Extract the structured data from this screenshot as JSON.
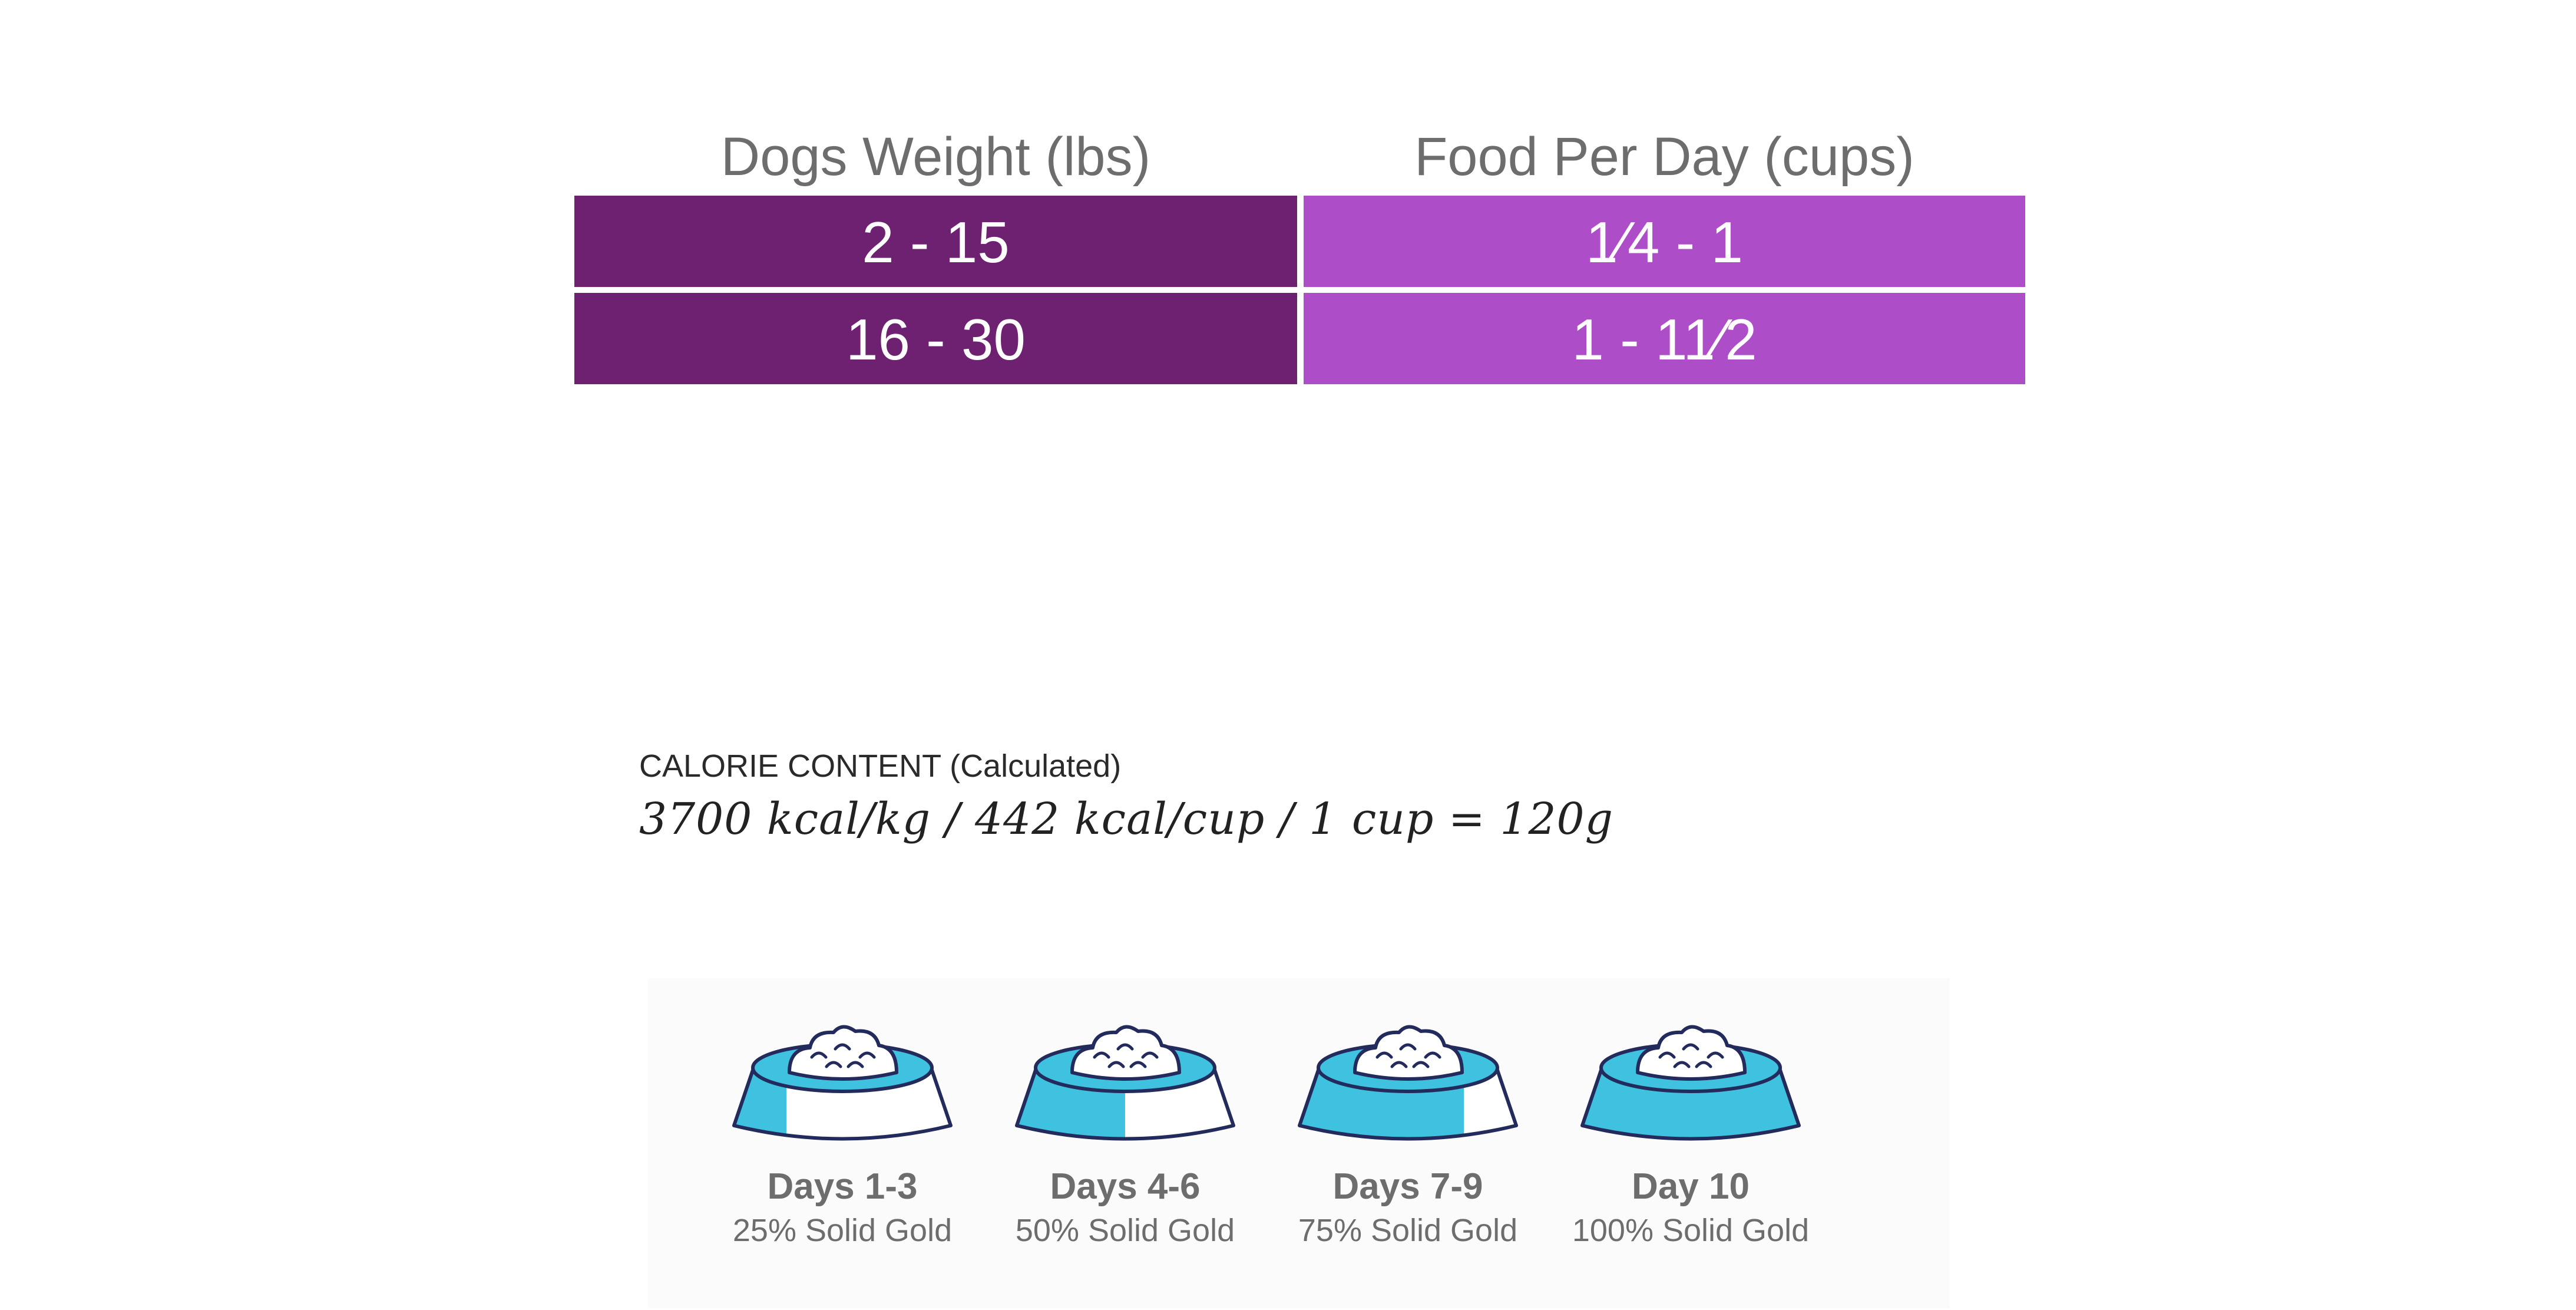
{
  "table": {
    "headers": [
      "Dogs Weight (lbs)",
      "Food Per Day (cups)"
    ],
    "rows": [
      {
        "weight": "2 - 15",
        "food": "1⁄4 - 1"
      },
      {
        "weight": "16 - 30",
        "food": "1  - 11⁄2"
      }
    ],
    "colors": {
      "weight_bg": "#6e2071",
      "food_bg": "#ad4dc7"
    }
  },
  "calorie": {
    "label": "CALORIE CONTENT (Calculated)",
    "value": "3700 kcal/kg / 442 kcal/cup / 1 cup = 120g"
  },
  "transition": {
    "steps": [
      {
        "title": "Days 1-3",
        "subtitle": "25% Solid Gold",
        "fill_fraction": 0.25
      },
      {
        "title": "Days 4-6",
        "subtitle": "50% Solid Gold",
        "fill_fraction": 0.5
      },
      {
        "title": "Days 7-9",
        "subtitle": "75% Solid Gold",
        "fill_fraction": 0.75
      },
      {
        "title": "Day 10",
        "subtitle": "100% Solid Gold",
        "fill_fraction": 1.0
      }
    ],
    "colors": {
      "bowl_fill": "#3fc1e0",
      "outline": "#232a5c",
      "text": "#6d6d6d"
    },
    "icon": "dog-food-bowl-icon"
  }
}
